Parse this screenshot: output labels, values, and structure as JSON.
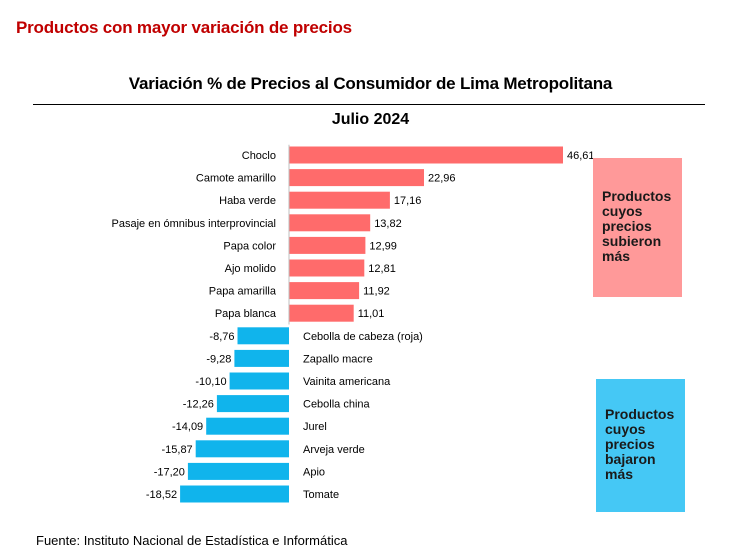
{
  "page_heading": "Productos con mayor variación de precios",
  "legend": {
    "up": "Productos cuyos precios subieron más",
    "down": "Productos cuyos precios bajaron más"
  },
  "source": "Fuente: Instituto Nacional de Estadística e Informática",
  "colors": {
    "positive": "#ff6b6b",
    "negative": "#10b4ec",
    "heading": "#c00000"
  },
  "chart_data": {
    "type": "bar",
    "orientation": "horizontal",
    "title": "Variación %  de Precios al Consumidor de Lima Metropolitana",
    "subtitle": "Julio 2024",
    "categories": [
      "Choclo",
      "Camote amarillo",
      "Haba verde",
      "Pasaje en ómnibus interprovincial",
      "Papa color",
      "Ajo molido",
      "Papa amarilla",
      "Papa blanca",
      "Cebolla de cabeza (roja)",
      "Zapallo macre",
      "Vainita americana",
      "Cebolla china",
      "Jurel",
      "Arveja verde",
      "Apio",
      "Tomate"
    ],
    "values": [
      46.61,
      22.96,
      17.16,
      13.82,
      12.99,
      12.81,
      11.92,
      11.01,
      -8.76,
      -9.28,
      -10.1,
      -12.26,
      -14.09,
      -15.87,
      -17.2,
      -18.52
    ],
    "value_labels": [
      "46,61",
      "22,96",
      "17,16",
      "13,82",
      "12,99",
      "12,81",
      "11,92",
      "11,01",
      "-8,76",
      "-9,28",
      "-10,10",
      "-12,26",
      "-14,09",
      "-15,87",
      "-17,20",
      "-18,52"
    ],
    "xlim": [
      -18.52,
      46.61
    ],
    "grid": false
  }
}
